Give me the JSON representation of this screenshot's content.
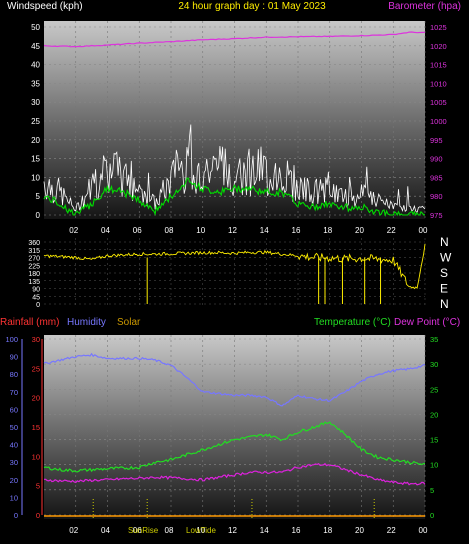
{
  "header": {
    "left_label": "Windspeed (kph)",
    "center_title": "24 hour graph day : 01 May 2023",
    "right_label": "Barometer (hpa)"
  },
  "bottom_header": {
    "rainfall_label": "Rainfall (mm)",
    "humidity_label": "Humidity",
    "solar_label": "Solar",
    "temperature_label": "Temperature (°C)",
    "dewpoint_label": "Dew Point (°C)"
  },
  "markers": {
    "sunrise": "SunRise",
    "lowtide": "LowTide"
  },
  "colors": {
    "wind_avg": "#00dd00",
    "gust": "#ffffff",
    "barometer": "#dd33dd",
    "direction": "#ffee00",
    "humidity": "#7777ff",
    "temperature": "#22dd22",
    "dewpoint": "#dd22dd",
    "rainfall": "#ff3333",
    "solar": "#cc9900"
  },
  "chart_data": [
    {
      "type": "line",
      "x_ticks": [
        "02",
        "04",
        "06",
        "08",
        "10",
        "12",
        "14",
        "16",
        "18",
        "20",
        "22",
        "00"
      ],
      "left_axis": {
        "ticks": [
          0,
          5,
          10,
          15,
          20,
          25,
          30,
          35,
          40,
          45,
          50
        ],
        "ylim": [
          0,
          50
        ]
      },
      "right_axis": {
        "ticks": [
          975,
          980,
          985,
          990,
          995,
          1000,
          1005,
          1010,
          1015,
          1020,
          1025
        ],
        "ylim": [
          975,
          1025
        ]
      },
      "series": [
        {
          "key": "gust",
          "x": [
            0,
            1,
            2,
            3,
            4,
            5,
            6,
            7,
            8,
            9,
            10,
            11,
            12,
            13,
            14,
            15,
            16,
            17,
            18,
            19,
            20,
            21,
            22,
            23,
            24
          ],
          "values": [
            12,
            8,
            2,
            10,
            16,
            13,
            10,
            4,
            12,
            20,
            17,
            15,
            17,
            16,
            15,
            15,
            10,
            8,
            9,
            6,
            7,
            5,
            3,
            2,
            2
          ]
        },
        {
          "key": "wind_avg",
          "x": [
            0,
            1,
            2,
            3,
            4,
            5,
            6,
            7,
            8,
            9,
            10,
            11,
            12,
            13,
            14,
            15,
            16,
            17,
            18,
            19,
            20,
            21,
            22,
            23,
            24
          ],
          "values": [
            5,
            3,
            0,
            3,
            7,
            6,
            4,
            1,
            5,
            9,
            7,
            6,
            7,
            7,
            6,
            6,
            3,
            2,
            3,
            2,
            2,
            1,
            0,
            0,
            0
          ]
        },
        {
          "key": "barometer",
          "x": [
            0,
            2,
            4,
            6,
            8,
            10,
            12,
            14,
            16,
            18,
            20,
            22,
            23,
            24
          ],
          "values": [
            1020.0,
            1019.8,
            1020.2,
            1020.7,
            1021.1,
            1021.6,
            1021.9,
            1022.3,
            1022.4,
            1022.5,
            1022.7,
            1023.0,
            1023.6,
            1023.5
          ]
        }
      ]
    },
    {
      "type": "line",
      "x_ticks": [
        "02",
        "04",
        "06",
        "08",
        "10",
        "12",
        "14",
        "16",
        "18",
        "20",
        "22",
        "00"
      ],
      "left_axis": {
        "ticks": [
          0,
          45,
          90,
          135,
          180,
          225,
          270,
          315,
          360
        ],
        "ylim": [
          0,
          360
        ]
      },
      "right_axis": {
        "ticks": [
          "N",
          "W",
          "S",
          "E",
          "N"
        ]
      },
      "series": [
        {
          "key": "direction",
          "x": [
            0,
            1,
            2,
            3,
            4,
            5,
            6,
            7,
            8,
            9,
            10,
            11,
            12,
            13,
            14,
            15,
            16,
            17,
            18,
            19,
            20,
            21,
            22,
            23,
            23.5,
            24
          ],
          "values": [
            280,
            275,
            270,
            258,
            280,
            285,
            290,
            290,
            292,
            295,
            298,
            298,
            295,
            300,
            300,
            290,
            280,
            270,
            268,
            262,
            265,
            260,
            255,
            100,
            95,
            340
          ]
        }
      ]
    },
    {
      "type": "line",
      "x_ticks": [
        "02",
        "04",
        "06",
        "08",
        "10",
        "12",
        "14",
        "16",
        "18",
        "20",
        "22",
        "00"
      ],
      "left_outer_axis": {
        "ticks": [
          0,
          10,
          20,
          30,
          40,
          50,
          60,
          70,
          80,
          90,
          100
        ],
        "ylim": [
          0,
          100
        ]
      },
      "left_inner_axis": {
        "ticks": [
          0,
          5,
          10,
          15,
          20,
          25,
          30
        ],
        "ylim": [
          0,
          30
        ]
      },
      "right_axis": {
        "ticks": [
          0,
          5,
          10,
          15,
          20,
          25,
          30,
          35
        ],
        "ylim": [
          0,
          35
        ]
      },
      "series": [
        {
          "key": "humidity",
          "x": [
            0,
            1,
            2,
            3,
            4,
            5,
            6,
            7,
            8,
            9,
            10,
            11,
            12,
            13,
            14,
            15,
            16,
            17,
            18,
            19,
            20,
            21,
            22,
            23,
            24
          ],
          "values": [
            86,
            88,
            90,
            91,
            89,
            89,
            89,
            88,
            85,
            78,
            70,
            69,
            68,
            68,
            67,
            62,
            68,
            66,
            65,
            70,
            76,
            80,
            82,
            83,
            85
          ]
        },
        {
          "key": "temperature",
          "x": [
            0,
            1,
            2,
            3,
            4,
            5,
            6,
            7,
            8,
            9,
            10,
            11,
            12,
            13,
            14,
            15,
            16,
            17,
            18,
            19,
            20,
            21,
            22,
            23,
            24
          ],
          "values": [
            9.5,
            9,
            8.8,
            9,
            9.2,
            9.3,
            9.5,
            10.5,
            11,
            12,
            13,
            14,
            15,
            15.5,
            16,
            15,
            16.5,
            17.5,
            18.5,
            16,
            13,
            11.5,
            11,
            10.5,
            10
          ]
        },
        {
          "key": "dewpoint",
          "x": [
            0,
            1,
            2,
            3,
            4,
            5,
            6,
            7,
            8,
            9,
            10,
            11,
            12,
            13,
            14,
            15,
            16,
            17,
            18,
            19,
            20,
            21,
            22,
            23,
            24
          ],
          "values": [
            7,
            6.8,
            6.7,
            6.9,
            7,
            7.2,
            7.3,
            7.5,
            7.4,
            7.2,
            7,
            7.5,
            8,
            8.5,
            8.5,
            8.5,
            9.5,
            10,
            10,
            9,
            8,
            7,
            6.5,
            6.2,
            6.3
          ]
        },
        {
          "key": "rainfall",
          "x": [
            0,
            24
          ],
          "values": [
            0,
            0
          ]
        }
      ]
    }
  ]
}
